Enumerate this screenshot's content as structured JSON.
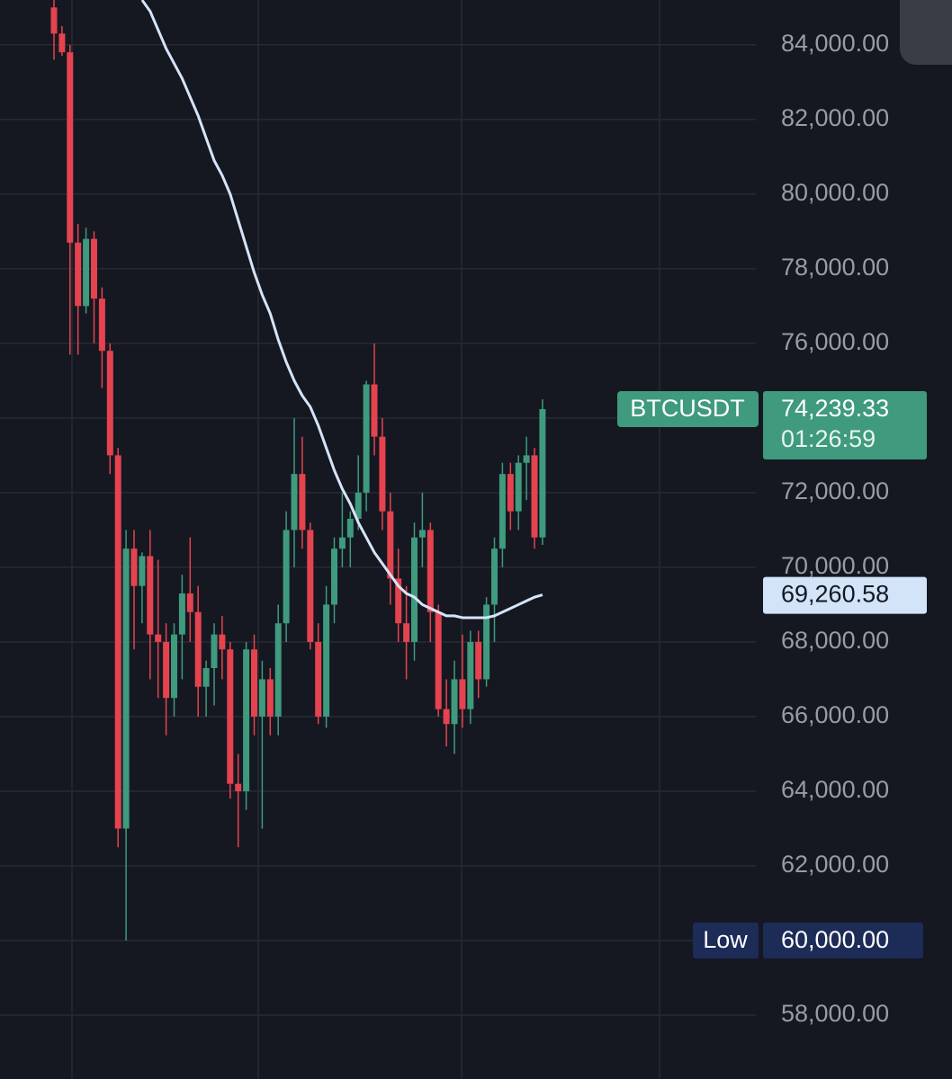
{
  "chart_data": {
    "type": "candlestick",
    "symbol": "BTCUSDT",
    "countdown": "01:26:59",
    "last_price": {
      "value": 74239.33,
      "label": "74,239.33"
    },
    "ma_last": {
      "value": 69260.58,
      "label": "69,260.58"
    },
    "low_tag": "Low",
    "low_price": {
      "value": 60000,
      "label": "60,000.00"
    },
    "up_color": "#3f9a7e",
    "down_color": "#e5434f",
    "ma_color": "#d6e4fb",
    "ylim": [
      56290,
      85200
    ],
    "yticks": [
      {
        "value": 58000,
        "label": "58,000.00"
      },
      {
        "value": 60000,
        "label": "60,000.00"
      },
      {
        "value": 62000,
        "label": "62,000.00"
      },
      {
        "value": 64000,
        "label": "64,000.00"
      },
      {
        "value": 66000,
        "label": "66,000.00"
      },
      {
        "value": 68000,
        "label": "68,000.00"
      },
      {
        "value": 70000,
        "label": "70,000.00"
      },
      {
        "value": 72000,
        "label": "72,000.00"
      },
      {
        "value": 74000,
        "label": "74,000.00"
      },
      {
        "value": 76000,
        "label": "76,000.00"
      },
      {
        "value": 78000,
        "label": "78,000.00"
      },
      {
        "value": 80000,
        "label": "80,000.00"
      },
      {
        "value": 82000,
        "label": "82,000.00"
      },
      {
        "value": 84000,
        "label": "84,000.00"
      }
    ],
    "grid": true,
    "open": [
      85000,
      84300,
      83800,
      78700,
      77000,
      78800,
      77200,
      75800,
      73000,
      63000,
      70500,
      69500,
      70300,
      68200,
      68000,
      66500,
      68200,
      69300,
      68800,
      66800,
      67300,
      68200,
      67800,
      64200,
      64000,
      67800,
      66000,
      67000,
      66000,
      68500,
      71000,
      72500,
      71000,
      68000,
      66000,
      69000,
      70500,
      70800,
      71300,
      72000,
      74900,
      73500,
      71500,
      69700,
      68500,
      68000,
      70800,
      71000,
      68800,
      66200,
      65800,
      67000,
      66200,
      68000,
      67000,
      69000,
      70500,
      72500,
      71500,
      72800,
      73000,
      70800
    ],
    "high": [
      85200,
      84500,
      84000,
      79200,
      79100,
      79000,
      77500,
      76000,
      73200,
      71000,
      71000,
      70400,
      71000,
      70200,
      68500,
      68500,
      69800,
      70800,
      69500,
      67500,
      68500,
      68700,
      68000,
      65000,
      68000,
      68200,
      67500,
      67300,
      69000,
      71500,
      74000,
      73500,
      71200,
      68500,
      69500,
      70800,
      72000,
      71500,
      73000,
      75000,
      76000,
      74000,
      72000,
      70500,
      69500,
      71200,
      72000,
      71200,
      69000,
      67000,
      67500,
      68200,
      68300,
      68300,
      69200,
      70800,
      72800,
      72800,
      73000,
      73500,
      73200,
      74500
    ],
    "low": [
      83600,
      83700,
      75700,
      75700,
      76800,
      76000,
      74800,
      72500,
      62500,
      60000,
      67800,
      68500,
      67000,
      66500,
      65500,
      66000,
      67000,
      68000,
      66000,
      66000,
      66300,
      67000,
      63800,
      62500,
      63500,
      65500,
      63000,
      65500,
      65500,
      68000,
      70000,
      70500,
      67800,
      65800,
      65700,
      68500,
      70000,
      70000,
      71000,
      71500,
      73000,
      71000,
      69000,
      68000,
      67000,
      67500,
      70000,
      68000,
      66000,
      65200,
      65000,
      65700,
      65800,
      66500,
      66800,
      68000,
      70000,
      71000,
      71000,
      71800,
      70500,
      70600
    ],
    "close": [
      84300,
      83800,
      78700,
      77000,
      78800,
      77200,
      75800,
      73000,
      63000,
      70500,
      69500,
      70300,
      68200,
      68000,
      66500,
      68200,
      69300,
      68800,
      66800,
      67300,
      68200,
      67800,
      64200,
      64000,
      67800,
      66000,
      67000,
      66000,
      68500,
      71000,
      72500,
      71000,
      68000,
      66000,
      69000,
      70500,
      70800,
      71300,
      72000,
      74900,
      73500,
      71500,
      69700,
      68500,
      68000,
      70800,
      71000,
      68800,
      66200,
      65800,
      67000,
      66200,
      68000,
      67000,
      69000,
      70500,
      72500,
      71500,
      72800,
      73000,
      70800,
      74239.33
    ],
    "ma": [
      null,
      null,
      null,
      null,
      null,
      null,
      null,
      null,
      null,
      null,
      null,
      85200,
      84900,
      84400,
      83900,
      83500,
      83100,
      82600,
      82100,
      81500,
      80900,
      80500,
      80000,
      79300,
      78600,
      77900,
      77300,
      76800,
      76100,
      75500,
      75000,
      74600,
      74300,
      73800,
      73200,
      72600,
      72100,
      71700,
      71200,
      70800,
      70400,
      70100,
      69800,
      69500,
      69300,
      69200,
      69000,
      68900,
      68800,
      68700,
      68700,
      68650,
      68650,
      68650,
      68650,
      68700,
      68800,
      68900,
      69000,
      69100,
      69200,
      69260.58
    ]
  }
}
